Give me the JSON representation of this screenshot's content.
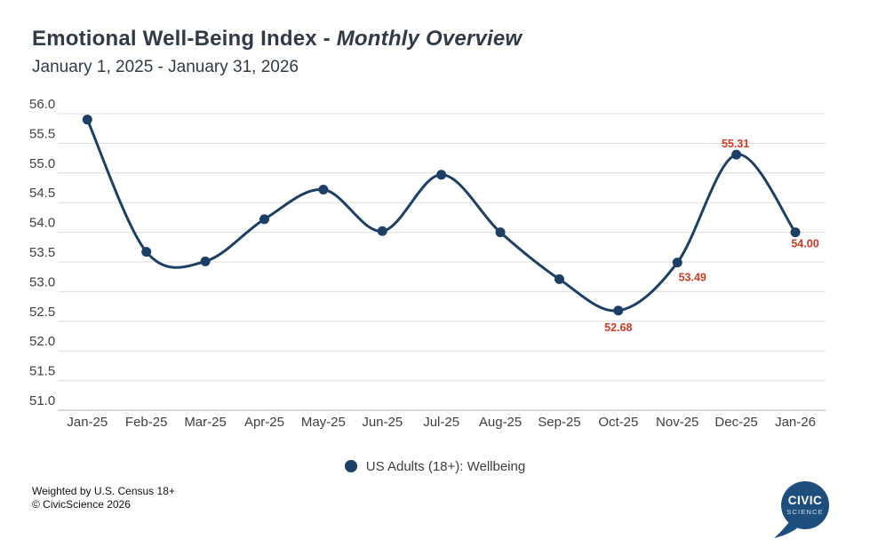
{
  "header": {
    "title_main": "Emotional Well-Being Index - ",
    "title_italic": "Monthly Overview",
    "subtitle": "January 1, 2025 - January 31, 2026"
  },
  "chart_data": {
    "type": "line",
    "title": "Emotional Well-Being Index - Monthly Overview",
    "subtitle": "January 1, 2025 - January 31, 2026",
    "categories": [
      "Jan-25",
      "Feb-25",
      "Mar-25",
      "Apr-25",
      "May-25",
      "Jun-25",
      "Jul-25",
      "Aug-25",
      "Sep-25",
      "Oct-25",
      "Nov-25",
      "Dec-25",
      "Jan-26"
    ],
    "series": [
      {
        "name": "US Adults (18+): Wellbeing",
        "values": [
          55.9,
          53.67,
          53.51,
          54.22,
          54.72,
          54.02,
          54.97,
          54.0,
          53.21,
          52.68,
          53.49,
          55.31,
          54.0
        ]
      }
    ],
    "point_labels": [
      null,
      null,
      null,
      null,
      null,
      null,
      null,
      null,
      null,
      "52.68",
      "53.49",
      "55.31",
      "54.00"
    ],
    "xlabel": "",
    "ylabel": "",
    "ylim": [
      51.0,
      56.0
    ],
    "ytick_step": 0.5,
    "grid": true,
    "legend_position": "bottom",
    "line_color": "#1c4065",
    "point_color": "#1c4065",
    "label_color": "#d03a21",
    "gridline_color": "#dcdcdc",
    "axis_line_color": "#b3b3b3",
    "tick_text_color": "#3f3f3f"
  },
  "legend": {
    "label": "US Adults (18+): Wellbeing",
    "marker_color": "#1c4065"
  },
  "footer": {
    "line1": "Weighted by U.S. Census 18+",
    "line2": "© CivicScience 2026"
  },
  "logo": {
    "line1": "CIVIC",
    "line2": "SCIENCE",
    "bubble_color": "#1d4e7d"
  }
}
